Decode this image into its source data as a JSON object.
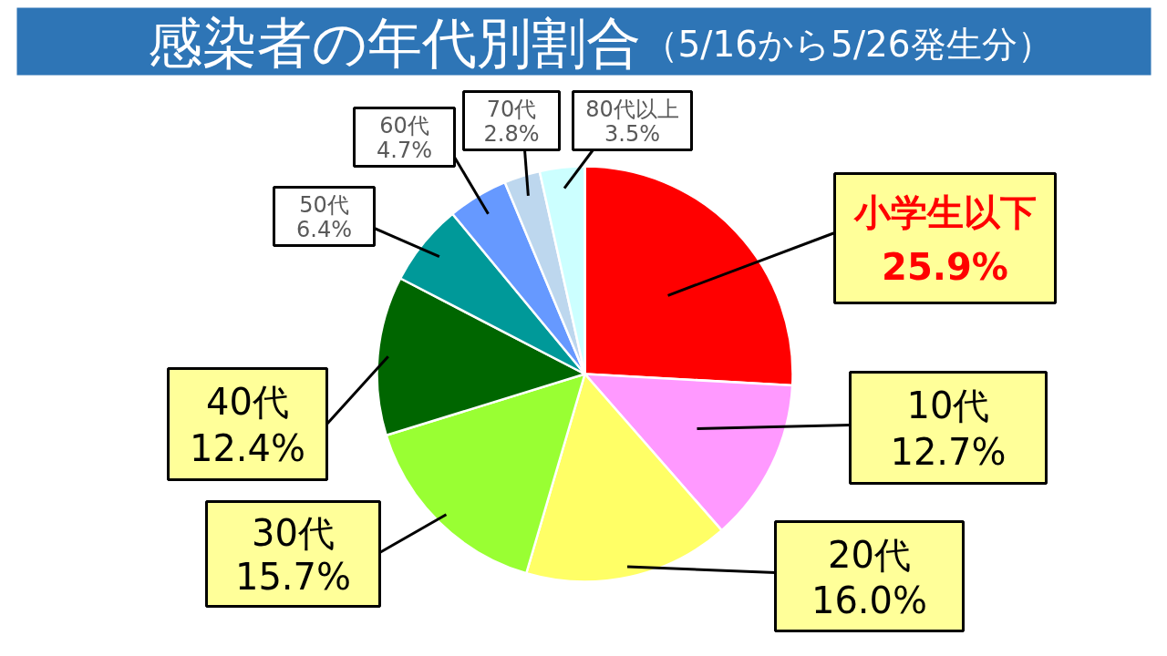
{
  "chart_data": {
    "type": "pie",
    "title": "感染者の年代別割合",
    "subtitle": "（5/16から5/26発生分）",
    "categories": [
      "小学生以下",
      "10代",
      "20代",
      "30代",
      "40代",
      "50代",
      "60代",
      "70代",
      "80代以上"
    ],
    "values": [
      25.9,
      12.7,
      16.0,
      15.7,
      12.4,
      6.4,
      4.7,
      2.8,
      3.5
    ],
    "value_labels": [
      "25.9%",
      "12.7%",
      "16.0%",
      "15.7%",
      "12.4%",
      "6.4%",
      "4.7%",
      "2.8%",
      "3.5%"
    ],
    "colors": [
      "#ff0000",
      "#ff99ff",
      "#ffff66",
      "#99ff33",
      "#006600",
      "#009999",
      "#6699ff",
      "#bdd7ee",
      "#ccffff"
    ]
  }
}
